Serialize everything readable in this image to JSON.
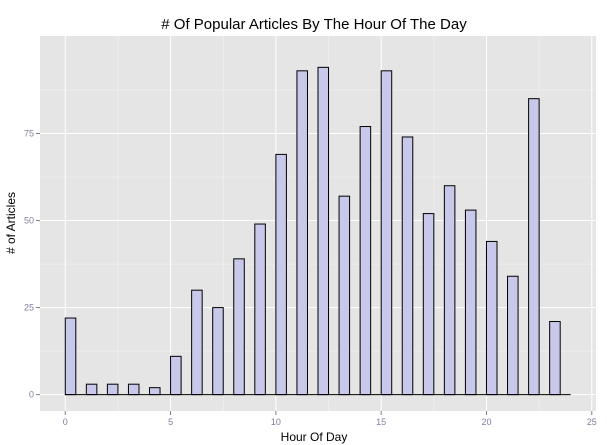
{
  "chart_data": {
    "type": "bar",
    "title": "# Of Popular Articles By The Hour Of The Day",
    "xlabel": "Hour Of Day",
    "ylabel": "# of Articles",
    "x": [
      0,
      1,
      2,
      3,
      4,
      5,
      6,
      7,
      8,
      9,
      10,
      11,
      12,
      13,
      14,
      15,
      16,
      17,
      18,
      19,
      20,
      21,
      22,
      23
    ],
    "values": [
      22,
      3,
      3,
      3,
      2,
      11,
      30,
      25,
      39,
      49,
      69,
      93,
      94,
      57,
      77,
      93,
      74,
      52,
      60,
      53,
      44,
      34,
      85,
      21
    ],
    "xlim": [
      -1.2,
      25.2
    ],
    "ylim": [
      -4.7,
      103
    ],
    "xticks": [
      0,
      5,
      10,
      15,
      20,
      25
    ],
    "yticks": [
      0,
      25,
      50,
      75
    ],
    "grid": true,
    "colors": {
      "panel": "#e5e5e5",
      "bar_fill": "#c8c8ea",
      "bar_stroke": "#000000"
    }
  }
}
